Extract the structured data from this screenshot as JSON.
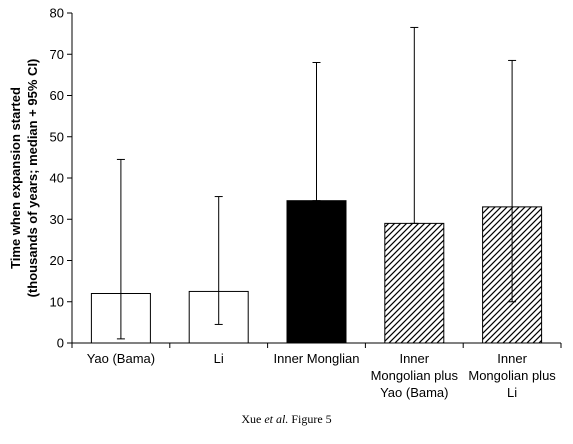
{
  "chart_data": {
    "type": "bar",
    "title": "",
    "xlabel": "",
    "ylabel_lines": [
      "Time when expansion started",
      "(thousands of years; median + 95% CI)"
    ],
    "ylim": [
      0,
      80
    ],
    "yticks": [
      0,
      10,
      20,
      30,
      40,
      50,
      60,
      70,
      80
    ],
    "grid": false,
    "categories": [
      [
        "Yao (Bama)"
      ],
      [
        "Li"
      ],
      [
        "Inner Monglian"
      ],
      [
        "Inner",
        "Mongolian plus",
        "Yao (Bama)"
      ],
      [
        "Inner",
        "Mongolian plus",
        "Li"
      ]
    ],
    "values": [
      12.0,
      12.5,
      34.5,
      29.0,
      33.0
    ],
    "ci_lower": [
      1.0,
      4.5,
      34.5,
      29.0,
      10.0
    ],
    "ci_upper": [
      44.5,
      35.5,
      68.0,
      76.5,
      68.5
    ],
    "fills": [
      "white",
      "white",
      "black",
      "hatch",
      "hatch"
    ],
    "colors": {
      "black": "#000000",
      "white": "#ffffff"
    }
  },
  "caption": {
    "author": "Xue",
    "etal": "et al.",
    "figure": "Figure 5"
  }
}
